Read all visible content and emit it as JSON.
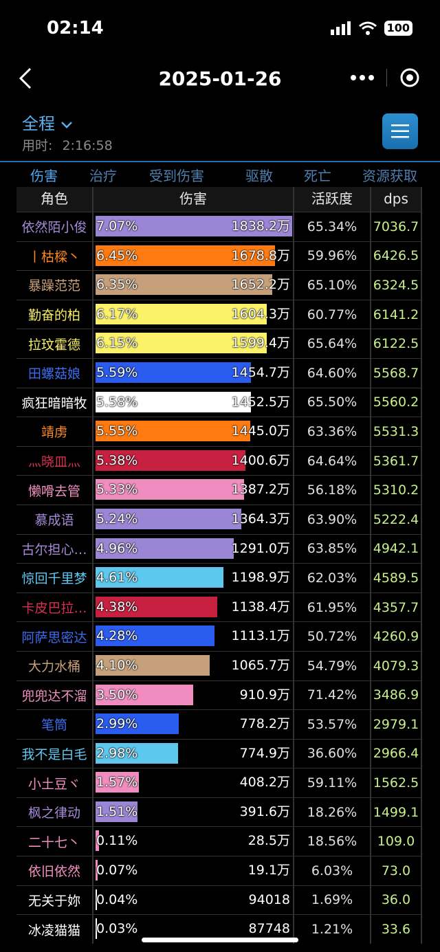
{
  "status": {
    "time": "02:14",
    "battery": "100"
  },
  "nav": {
    "title": "2025-01-26"
  },
  "header": {
    "range": "全程",
    "elapsed_label": "用时:",
    "elapsed": "2:16:58"
  },
  "tabs": [
    "伤害",
    "治疗",
    "受到伤害",
    "驱散",
    "死亡",
    "资源获取"
  ],
  "columns": [
    "角色",
    "伤害",
    "活跃度",
    "dps"
  ],
  "rows": [
    {
      "name": "依然陌小俊",
      "name_color": "#a48ad8",
      "pct": "7.07%",
      "amount": "1838.2万",
      "fill": 1.0,
      "bar_color": "#9b86d6",
      "activity": "65.34%",
      "dps": "7036.7"
    },
    {
      "name": "丨枯樑丶",
      "name_color": "#ff8a1a",
      "pct": "6.45%",
      "amount": "1678.8万",
      "fill": 0.912,
      "bar_color": "#ff7a10",
      "activity": "59.96%",
      "dps": "6426.5"
    },
    {
      "name": "暴躁范范",
      "name_color": "#c8a07a",
      "pct": "6.35%",
      "amount": "1652.2万",
      "fill": 0.898,
      "bar_color": "#c6a07a",
      "activity": "65.10%",
      "dps": "6324.5"
    },
    {
      "name": "勤奋的柏",
      "name_color": "#f5ee60",
      "pct": "6.17%",
      "amount": "1604.3万",
      "fill": 0.872,
      "bar_color": "#fbf26a",
      "activity": "60.77%",
      "dps": "6141.2"
    },
    {
      "name": "拉玟霍德",
      "name_color": "#f5ee60",
      "pct": "6.15%",
      "amount": "1599.4万",
      "fill": 0.87,
      "bar_color": "#fbf26a",
      "activity": "65.64%",
      "dps": "6122.5"
    },
    {
      "name": "田螺菇娘",
      "name_color": "#3c6cf0",
      "pct": "5.59%",
      "amount": "1454.7万",
      "fill": 0.79,
      "bar_color": "#2b5cf0",
      "activity": "64.60%",
      "dps": "5568.7"
    },
    {
      "name": "疯狂暗暗牧",
      "name_color": "#ffffff",
      "pct": "5.58%",
      "amount": "1452.5万",
      "fill": 0.789,
      "bar_color": "#ffffff",
      "activity": "65.50%",
      "dps": "5560.2"
    },
    {
      "name": "靖虏",
      "name_color": "#ff8a1a",
      "pct": "5.55%",
      "amount": "1445.0万",
      "fill": 0.785,
      "bar_color": "#ff7a10",
      "activity": "63.36%",
      "dps": "5531.3"
    },
    {
      "name": "灬晓皿灬",
      "name_color": "#d83050",
      "pct": "5.38%",
      "amount": "1400.6万",
      "fill": 0.761,
      "bar_color": "#c82040",
      "activity": "64.64%",
      "dps": "5361.7"
    },
    {
      "name": "懒嗗去管",
      "name_color": "#f090c0",
      "pct": "5.33%",
      "amount": "1387.2万",
      "fill": 0.754,
      "bar_color": "#f08cc0",
      "activity": "56.18%",
      "dps": "5310.2"
    },
    {
      "name": "慕成语",
      "name_color": "#a48ad8",
      "pct": "5.24%",
      "amount": "1364.3万",
      "fill": 0.741,
      "bar_color": "#9b86d6",
      "activity": "63.90%",
      "dps": "5222.4"
    },
    {
      "name": "古尔担心…",
      "name_color": "#a48ad8",
      "pct": "4.96%",
      "amount": "1291.0万",
      "fill": 0.702,
      "bar_color": "#9b86d6",
      "activity": "63.85%",
      "dps": "4942.1"
    },
    {
      "name": "惊回千里梦",
      "name_color": "#60c8f0",
      "pct": "4.61%",
      "amount": "1198.9万",
      "fill": 0.652,
      "bar_color": "#5cc8ef",
      "activity": "62.03%",
      "dps": "4589.5"
    },
    {
      "name": "卡皮巴拉…",
      "name_color": "#d83050",
      "pct": "4.38%",
      "amount": "1138.4万",
      "fill": 0.619,
      "bar_color": "#c82040",
      "activity": "61.95%",
      "dps": "4357.7"
    },
    {
      "name": "阿萨思密达",
      "name_color": "#3c6cf0",
      "pct": "4.28%",
      "amount": "1113.1万",
      "fill": 0.605,
      "bar_color": "#2b5cf0",
      "activity": "50.72%",
      "dps": "4260.9"
    },
    {
      "name": "大力水桶",
      "name_color": "#c8a07a",
      "pct": "4.10%",
      "amount": "1065.7万",
      "fill": 0.58,
      "bar_color": "#c6a07a",
      "activity": "54.79%",
      "dps": "4079.3"
    },
    {
      "name": "兜兜达不溜",
      "name_color": "#f090c0",
      "pct": "3.50%",
      "amount": "910.9万",
      "fill": 0.495,
      "bar_color": "#f08cc0",
      "activity": "71.42%",
      "dps": "3486.9"
    },
    {
      "name": "笔筒",
      "name_color": "#3c6cf0",
      "pct": "2.99%",
      "amount": "778.2万",
      "fill": 0.423,
      "bar_color": "#2b5cf0",
      "activity": "53.57%",
      "dps": "2979.1"
    },
    {
      "name": "我不是白毛",
      "name_color": "#60c8f0",
      "pct": "2.98%",
      "amount": "774.9万",
      "fill": 0.421,
      "bar_color": "#5cc8ef",
      "activity": "36.60%",
      "dps": "2966.4"
    },
    {
      "name": "小土豆ヾ",
      "name_color": "#f090c0",
      "pct": "1.57%",
      "amount": "408.2万",
      "fill": 0.222,
      "bar_color": "#f08cc0",
      "activity": "59.11%",
      "dps": "1562.5"
    },
    {
      "name": "枫之律动",
      "name_color": "#a48ad8",
      "pct": "1.51%",
      "amount": "391.6万",
      "fill": 0.213,
      "bar_color": "#9b86d6",
      "activity": "18.26%",
      "dps": "1499.1"
    },
    {
      "name": "二十七丶",
      "name_color": "#f090c0",
      "pct": "0.11%",
      "amount": "28.5万",
      "fill": 0.016,
      "bar_color": "#f08cc0",
      "activity": "18.56%",
      "dps": "109.0"
    },
    {
      "name": "依旧依然",
      "name_color": "#f090c0",
      "pct": "0.07%",
      "amount": "19.1万",
      "fill": 0.01,
      "bar_color": "#f08cc0",
      "activity": "6.03%",
      "dps": "73.0"
    },
    {
      "name": "无关于妳",
      "name_color": "#ffffff",
      "pct": "0.04%",
      "amount": "94018",
      "fill": 0.006,
      "bar_color": "#ffffff",
      "activity": "1.69%",
      "dps": "36.0"
    },
    {
      "name": "冰凌猫猫",
      "name_color": "#ffffff",
      "pct": "0.03%",
      "amount": "87748",
      "fill": 0.005,
      "bar_color": "#ffffff",
      "activity": "1.21%",
      "dps": "33.6"
    }
  ]
}
